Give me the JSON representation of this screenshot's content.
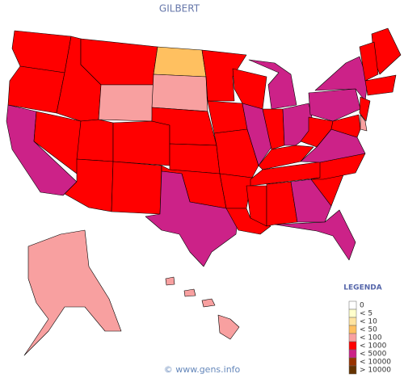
{
  "title": "GILBERT",
  "legend": {
    "title": "LEGENDA",
    "items": [
      {
        "label": "0",
        "color": "#ffffff"
      },
      {
        "label": "< 5",
        "color": "#ffffcc"
      },
      {
        "label": "< 10",
        "color": "#ffe4a0"
      },
      {
        "label": "< 50",
        "color": "#ffc060"
      },
      {
        "label": "< 100",
        "color": "#f8a0a0"
      },
      {
        "label": "< 1000",
        "color": "#ff0000"
      },
      {
        "label": "< 5000",
        "color": "#cc2288"
      },
      {
        "label": "< 10000",
        "color": "#993300"
      },
      {
        "label": "> 10000",
        "color": "#663300"
      }
    ]
  },
  "footer": "© www.gens.info"
}
